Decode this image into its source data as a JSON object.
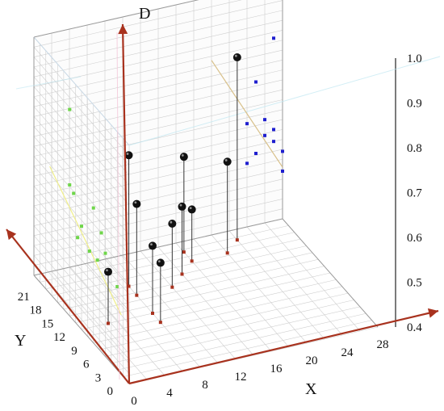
{
  "chart_data": {
    "type": "scatter",
    "x_ticks": [
      "0",
      "4",
      "8",
      "12",
      "16",
      "20",
      "24",
      "28"
    ],
    "y_ticks": [
      "0",
      "3",
      "6",
      "9",
      "12",
      "15",
      "18",
      "21"
    ],
    "z_ticks": [
      "0.4",
      "0.5",
      "0.6",
      "0.7",
      "0.8",
      "0.9",
      "1.0"
    ],
    "xlabel": "X",
    "ylabel": "Y",
    "zlabel": "D",
    "xlim": [
      0,
      28
    ],
    "ylim": [
      0,
      24
    ],
    "zlim": [
      0.4,
      1.0
    ],
    "grid": true,
    "points": [
      {
        "x": 3,
        "y": 12,
        "z": 0.53
      },
      {
        "x": 8,
        "y": 18,
        "z": 0.73
      },
      {
        "x": 8,
        "y": 16,
        "z": 0.63
      },
      {
        "x": 8,
        "y": 12,
        "z": 0.57
      },
      {
        "x": 8,
        "y": 10,
        "z": 0.55
      },
      {
        "x": 12,
        "y": 16,
        "z": 0.56
      },
      {
        "x": 14,
        "y": 18,
        "z": 0.57
      },
      {
        "x": 16,
        "y": 20,
        "z": 0.53
      },
      {
        "x": 16,
        "y": 22,
        "z": 0.64
      },
      {
        "x": 20,
        "y": 20,
        "z": 0.63
      },
      {
        "x": 22,
        "y": 22,
        "z": 0.86
      }
    ],
    "projection_yz": [
      {
        "y": 3,
        "z": 0.61
      },
      {
        "y": 6,
        "z": 0.66
      },
      {
        "y": 7,
        "z": 0.7
      },
      {
        "y": 8,
        "z": 0.62
      },
      {
        "y": 9,
        "z": 0.74
      },
      {
        "y": 10,
        "z": 0.62
      },
      {
        "y": 13,
        "z": 0.62
      },
      {
        "y": 12,
        "z": 0.66
      },
      {
        "y": 14,
        "z": 0.72
      },
      {
        "y": 15,
        "z": 0.73
      },
      {
        "y": 15,
        "z": 0.92
      }
    ],
    "projection_xz": [
      {
        "x": 25,
        "z": 0.76
      },
      {
        "x": 24,
        "z": 0.66
      },
      {
        "x": 26,
        "z": 0.66
      },
      {
        "x": 26,
        "z": 0.62
      },
      {
        "x": 27,
        "z": 0.63
      },
      {
        "x": 28,
        "z": 0.57
      },
      {
        "x": 24,
        "z": 0.56
      },
      {
        "x": 25,
        "z": 0.58
      },
      {
        "x": 27,
        "z": 0.6
      },
      {
        "x": 27,
        "z": 0.86
      },
      {
        "x": 28,
        "z": 0.52
      }
    ],
    "colors": {
      "axis": "#a8321e",
      "grid": "#cfcfcf",
      "point": "#111111",
      "stem_base": "#a8321e",
      "proj_yz": "#6fd64a",
      "proj_xz": "#1f1fcf",
      "trend_yz": "#f0ef8a",
      "trend_xz": "#d8c089"
    }
  }
}
